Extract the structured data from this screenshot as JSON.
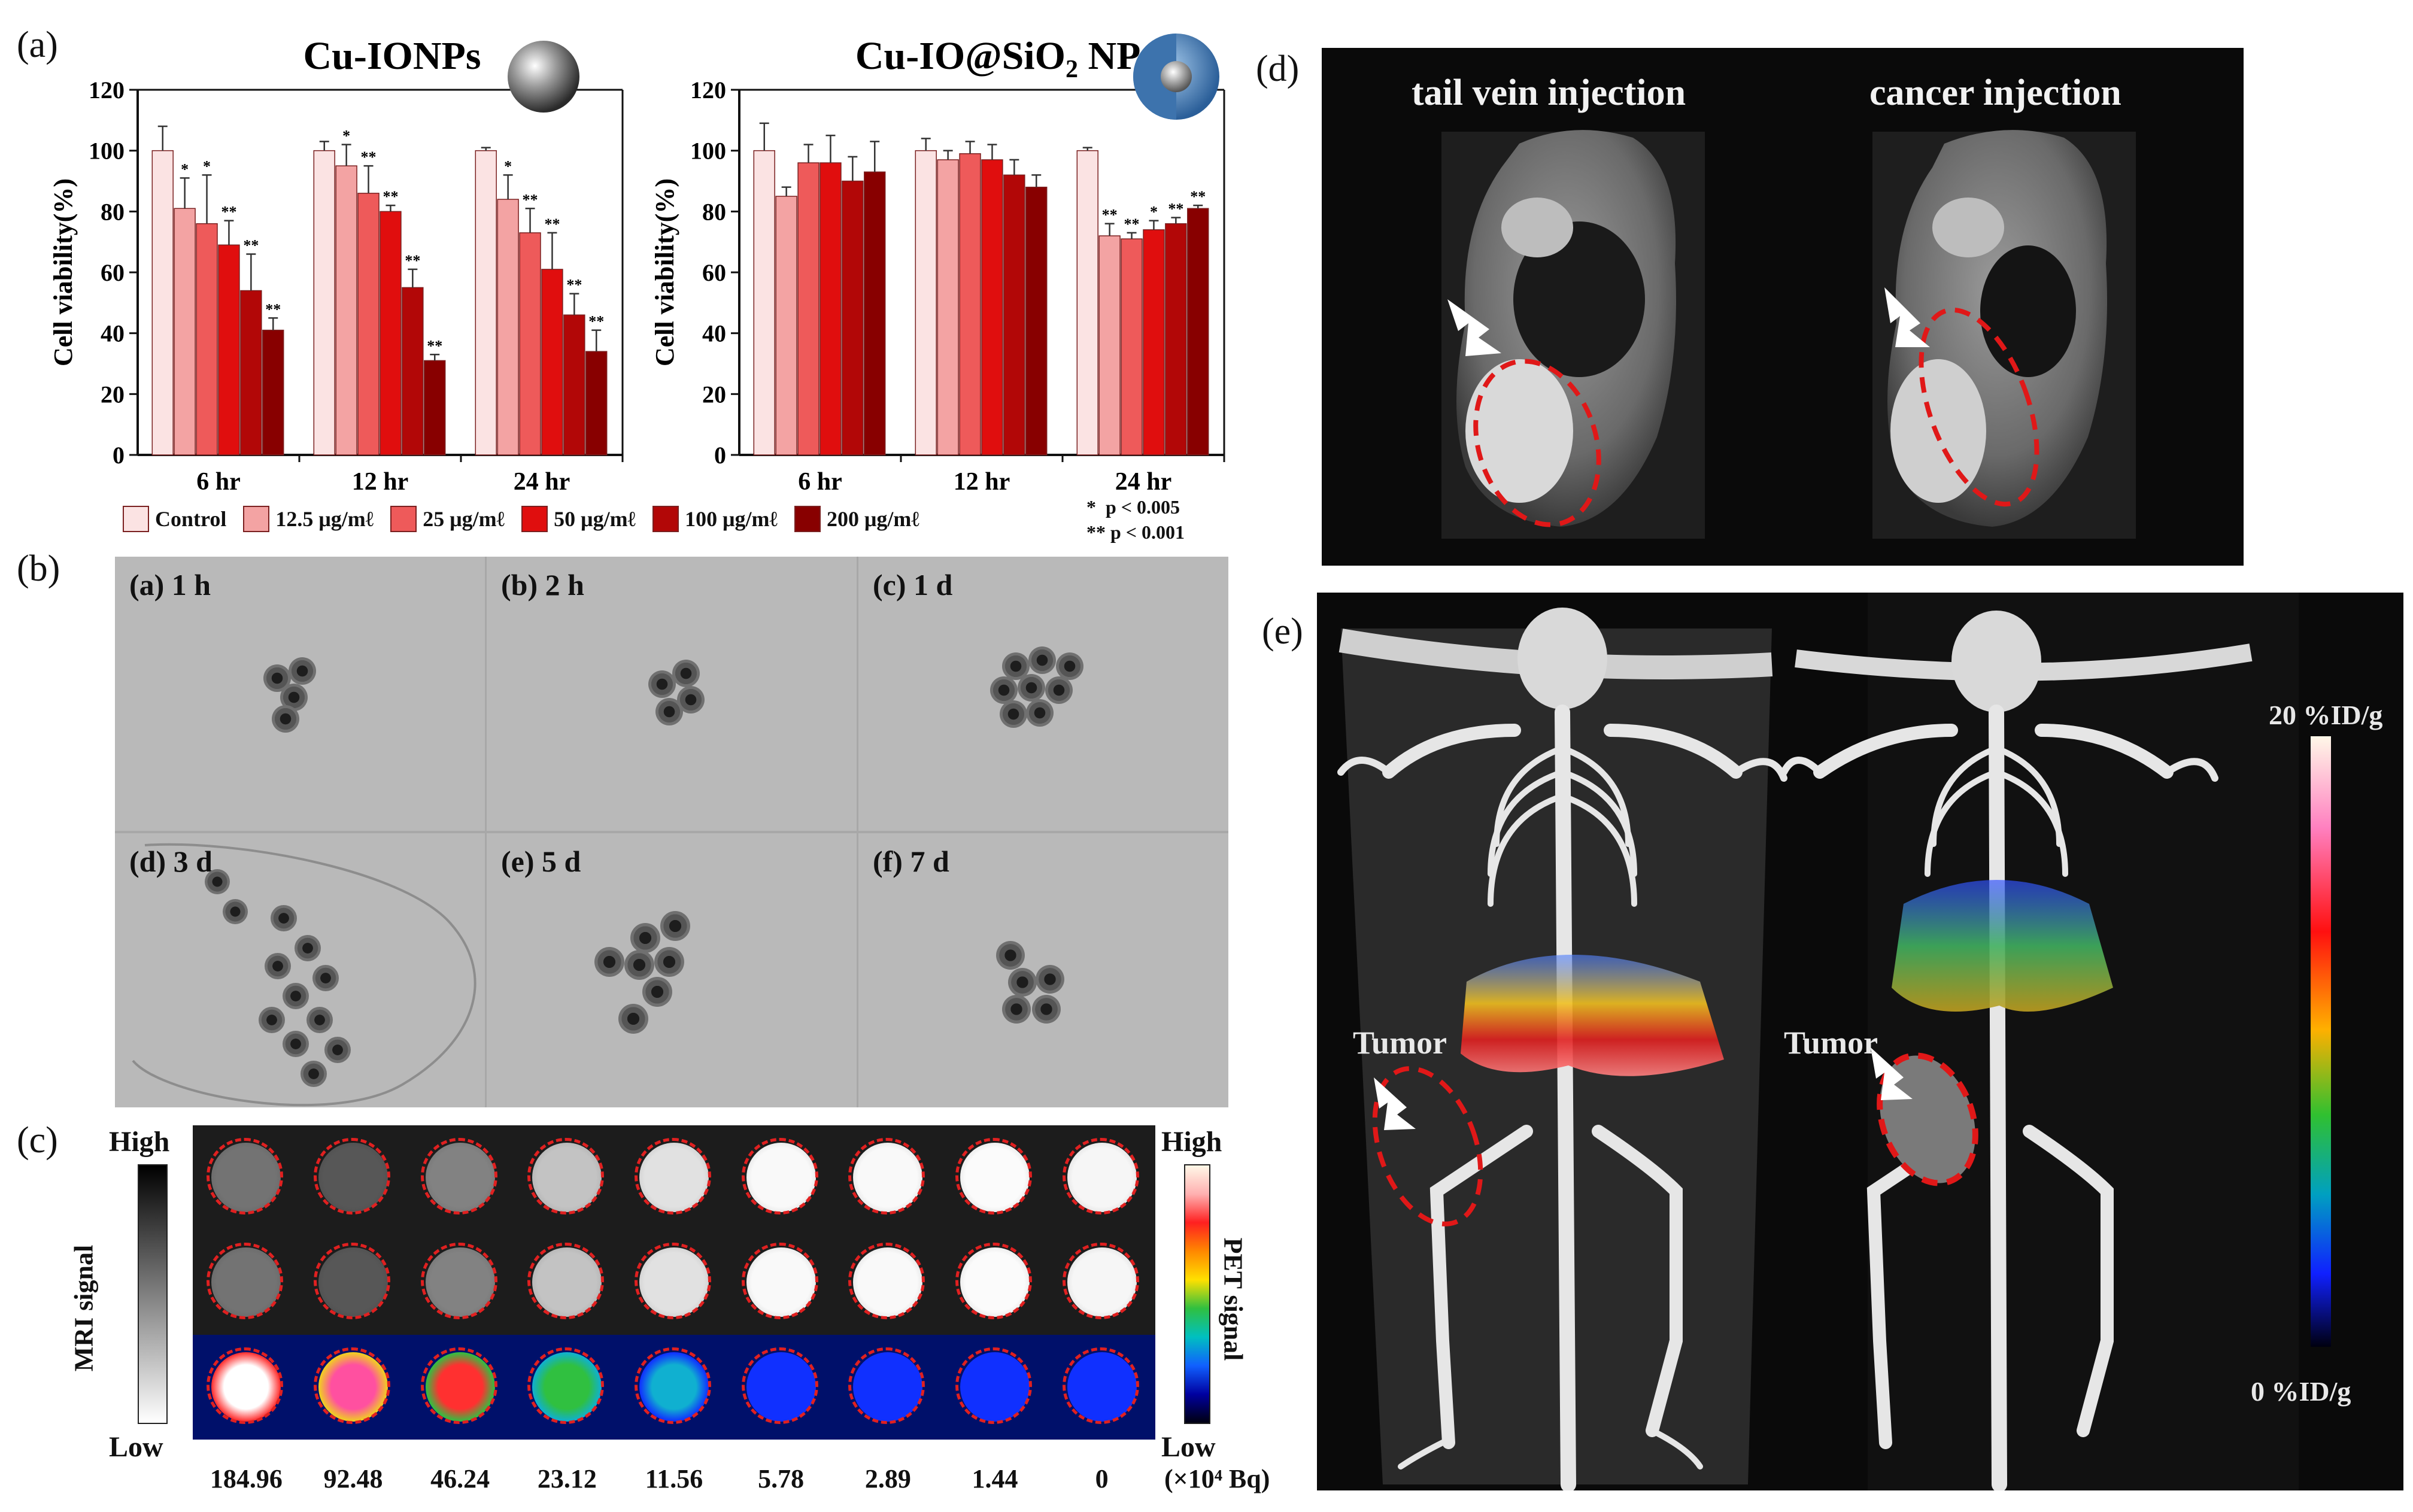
{
  "panel_labels": {
    "a": "(a)",
    "b": "(b)",
    "c": "(c)",
    "d": "(d)",
    "e": "(e)"
  },
  "chart_data": [
    {
      "type": "bar",
      "title": "Cu-IONPs",
      "ylabel": "Cell viability(%)",
      "ylim": [
        0,
        120
      ],
      "yticks": [
        "0",
        "20",
        "40",
        "60",
        "80",
        "100",
        "120"
      ],
      "categories": [
        "6 hr",
        "12 hr",
        "24 hr"
      ],
      "series": [
        {
          "name": "Control",
          "values": [
            100,
            100,
            100
          ],
          "errors": [
            8,
            3,
            1
          ],
          "sig": [
            "",
            "",
            ""
          ]
        },
        {
          "name": "12.5 μg/mℓ",
          "values": [
            81,
            95,
            84
          ],
          "errors": [
            10,
            7,
            8
          ],
          "sig": [
            "*",
            "*",
            "*"
          ]
        },
        {
          "name": "25 μg/mℓ",
          "values": [
            76,
            86,
            73
          ],
          "errors": [
            16,
            9,
            8
          ],
          "sig": [
            "*",
            "**",
            "**"
          ]
        },
        {
          "name": "50 μg/mℓ",
          "values": [
            69,
            80,
            61
          ],
          "errors": [
            8,
            2,
            12
          ],
          "sig": [
            "**",
            "**",
            "**"
          ]
        },
        {
          "name": "100 μg/mℓ",
          "values": [
            54,
            55,
            46
          ],
          "errors": [
            12,
            6,
            7
          ],
          "sig": [
            "**",
            "**",
            "**"
          ]
        },
        {
          "name": "200 μg/mℓ",
          "values": [
            41,
            31,
            34
          ],
          "errors": [
            4,
            2,
            7
          ],
          "sig": [
            "**",
            "**",
            "**"
          ]
        }
      ]
    },
    {
      "type": "bar",
      "title": "Cu-IO@SiO",
      "title_sub": "2",
      "title_tail": " NPs",
      "ylabel": "Cell viability(%)",
      "ylim": [
        0,
        120
      ],
      "yticks": [
        "0",
        "20",
        "40",
        "60",
        "80",
        "100",
        "120"
      ],
      "categories": [
        "6 hr",
        "12 hr",
        "24 hr"
      ],
      "series": [
        {
          "name": "Control",
          "values": [
            100,
            100,
            100
          ],
          "errors": [
            9,
            4,
            1
          ],
          "sig": [
            "",
            "",
            ""
          ]
        },
        {
          "name": "12.5 μg/mℓ",
          "values": [
            85,
            97,
            72
          ],
          "errors": [
            3,
            3,
            4
          ],
          "sig": [
            "",
            "",
            "**"
          ]
        },
        {
          "name": "25 μg/mℓ",
          "values": [
            96,
            99,
            71
          ],
          "errors": [
            6,
            4,
            2
          ],
          "sig": [
            "",
            "",
            "**"
          ]
        },
        {
          "name": "50 μg/mℓ",
          "values": [
            96,
            97,
            74
          ],
          "errors": [
            9,
            5,
            3
          ],
          "sig": [
            "",
            "",
            "*"
          ]
        },
        {
          "name": "100 μg/mℓ",
          "values": [
            90,
            92,
            76
          ],
          "errors": [
            8,
            5,
            2
          ],
          "sig": [
            "",
            "",
            "**"
          ]
        },
        {
          "name": "200 μg/mℓ",
          "values": [
            93,
            88,
            81
          ],
          "errors": [
            10,
            4,
            1
          ],
          "sig": [
            "",
            "",
            "**"
          ]
        }
      ]
    }
  ],
  "legend": {
    "items": [
      "Control",
      "12.5 μg/mℓ",
      "25 μg/mℓ",
      "50 μg/mℓ",
      "100 μg/mℓ",
      "200 μg/mℓ"
    ],
    "colors": [
      "#fbe3e3",
      "#f3a3a3",
      "#ee5a5a",
      "#e00e0e",
      "#b20707",
      "#880000"
    ],
    "sig1": "*  p < 0.005",
    "sig2": "** p < 0.001"
  },
  "tem": [
    {
      "label": "(a) 1 h"
    },
    {
      "label": "(b) 2 h"
    },
    {
      "label": "(c) 1 d"
    },
    {
      "label": "(d) 3 d"
    },
    {
      "label": "(e) 5 d"
    },
    {
      "label": "(f) 7 d"
    }
  ],
  "phantom": {
    "mri_high": "High",
    "mri_low": "Low",
    "mri_axis": "MRI signal",
    "pet_high": "High",
    "pet_low": "Low",
    "pet_axis": "PET signal",
    "activities": [
      "184.96",
      "92.48",
      "46.24",
      "23.12",
      "11.56",
      "5.78",
      "2.89",
      "1.44",
      "0"
    ],
    "unit": "(×10⁴ Bq)",
    "mri_brightness": [
      0.35,
      0.22,
      0.42,
      0.72,
      0.86,
      0.97,
      0.97,
      0.98,
      0.96
    ],
    "pet_intensity": [
      1.0,
      0.85,
      0.7,
      0.5,
      0.25,
      0.12,
      0.06,
      0.03,
      0.0
    ]
  },
  "mri_panel": {
    "left_label": "tail vein injection",
    "right_label": "cancer injection"
  },
  "pet_panel": {
    "tumor_left": "Tumor",
    "tumor_right": "Tumor",
    "scale_top": "20 %ID/g",
    "scale_bottom": "0 %ID/g"
  }
}
